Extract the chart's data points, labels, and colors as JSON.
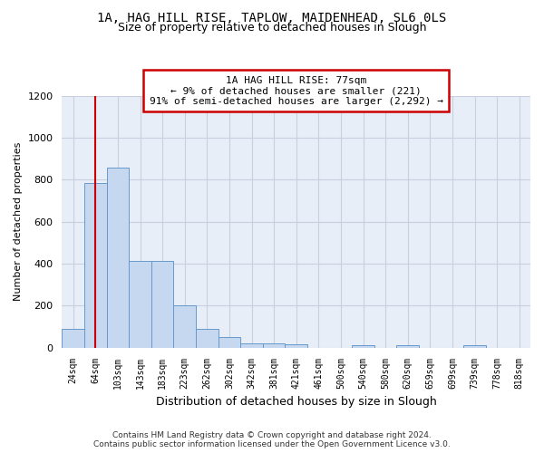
{
  "title1": "1A, HAG HILL RISE, TAPLOW, MAIDENHEAD, SL6 0LS",
  "title2": "Size of property relative to detached houses in Slough",
  "xlabel": "Distribution of detached houses by size in Slough",
  "ylabel": "Number of detached properties",
  "footer": "Contains HM Land Registry data © Crown copyright and database right 2024.\nContains public sector information licensed under the Open Government Licence v3.0.",
  "categories": [
    "24sqm",
    "64sqm",
    "103sqm",
    "143sqm",
    "183sqm",
    "223sqm",
    "262sqm",
    "302sqm",
    "342sqm",
    "381sqm",
    "421sqm",
    "461sqm",
    "500sqm",
    "540sqm",
    "580sqm",
    "620sqm",
    "659sqm",
    "699sqm",
    "739sqm",
    "778sqm",
    "818sqm"
  ],
  "values": [
    90,
    785,
    860,
    415,
    415,
    200,
    90,
    50,
    22,
    22,
    15,
    0,
    0,
    13,
    0,
    13,
    0,
    0,
    13,
    0,
    0
  ],
  "bar_color": "#c5d8ef",
  "bar_edge_color": "#6699cc",
  "annotation_text": "1A HAG HILL RISE: 77sqm\n← 9% of detached houses are smaller (221)\n91% of semi-detached houses are larger (2,292) →",
  "annotation_box_color": "#ffffff",
  "annotation_box_edge": "#cc0000",
  "vline_color": "#cc0000",
  "vline_x": 1.0,
  "ylim": [
    0,
    1200
  ],
  "yticks": [
    0,
    200,
    400,
    600,
    800,
    1000,
    1200
  ],
  "plot_bg": "#e8eef8",
  "grid_color": "#c8d0e0",
  "title1_fontsize": 10,
  "title2_fontsize": 9,
  "xlabel_fontsize": 9,
  "ylabel_fontsize": 8,
  "footer_fontsize": 6.5
}
